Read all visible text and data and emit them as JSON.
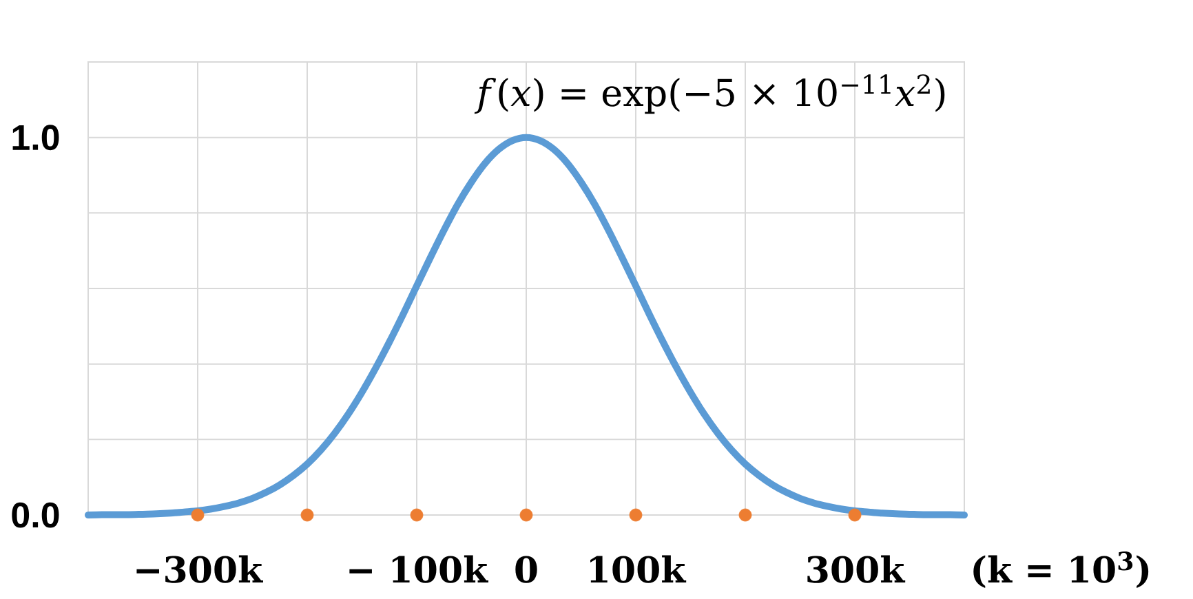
{
  "chart_data": {
    "type": "line",
    "annotations": [
      "*f*(*x*) = exp(−5 × 10$^{−11}$*x*$^{2}$)"
    ],
    "xlabel": "(k = 10$^{3}$)",
    "xlim": [
      -400000,
      400000
    ],
    "ylim": [
      0,
      1.2
    ],
    "xticks": [
      {
        "value": -300000,
        "label": "−300k"
      },
      {
        "value": -200000,
        "label": null
      },
      {
        "value": -100000,
        "label": "− 100k"
      },
      0,
      {
        "value": 100000,
        "label": "100k"
      },
      {
        "value": 200000,
        "label": null
      },
      {
        "value": 300000,
        "label": "300k"
      }
    ],
    "yticks": [
      {
        "value": 0,
        "label": "0.0"
      },
      {
        "value": 0.2,
        "label": null
      },
      {
        "value": 0.4,
        "label": null
      },
      {
        "value": 0.6,
        "label": null
      },
      {
        "value": 0.8,
        "label": null
      },
      {
        "value": 1,
        "label": "1.0"
      }
    ],
    "grid": true,
    "series": [
      {
        "color": "#5b9bd5",
        "x": [
          -400000,
          -387500,
          -375000,
          -362500,
          -350000,
          -337500,
          -325000,
          -312500,
          -300000,
          -287500,
          -275000,
          -262500,
          -250000,
          -237500,
          -225000,
          -212500,
          -200000,
          -187500,
          -175000,
          -162500,
          -150000,
          -137500,
          -125000,
          -112500,
          -100000,
          -87500,
          -75000,
          -62500,
          -50000,
          -37500,
          -25000,
          -12500,
          0,
          12500,
          25000,
          37500,
          50000,
          62500,
          75000,
          87500,
          100000,
          112500,
          125000,
          137500,
          150000,
          162500,
          175000,
          187500,
          200000,
          212500,
          225000,
          237500,
          250000,
          262500,
          275000,
          287500,
          300000,
          312500,
          325000,
          337500,
          350000,
          362500,
          375000,
          387500,
          400000
        ],
        "values": [
          0,
          0.001,
          0.001,
          0.001,
          0.002,
          0.003,
          0.005,
          0.008,
          0.011,
          0.016,
          0.023,
          0.032,
          0.044,
          0.06,
          0.08,
          0.105,
          0.135,
          0.172,
          0.216,
          0.267,
          0.325,
          0.389,
          0.458,
          0.531,
          0.607,
          0.682,
          0.755,
          0.823,
          0.882,
          0.932,
          0.969,
          0.992,
          1,
          0.992,
          0.969,
          0.932,
          0.882,
          0.823,
          0.755,
          0.682,
          0.607,
          0.531,
          0.458,
          0.389,
          0.325,
          0.267,
          0.216,
          0.172,
          0.135,
          0.105,
          0.08,
          0.06,
          0.044,
          0.032,
          0.023,
          0.016,
          0.011,
          0.008,
          0.005,
          0.003,
          0.002,
          0.001,
          0.001,
          0.001,
          0
        ]
      },
      {
        "type": "scatter",
        "color": "#ed7d31",
        "marker": "circle",
        "x": [
          -300000,
          -200000,
          -100000,
          0,
          100000,
          200000,
          300000
        ],
        "values": [
          0,
          0,
          0,
          0,
          0,
          0,
          0
        ]
      }
    ]
  }
}
